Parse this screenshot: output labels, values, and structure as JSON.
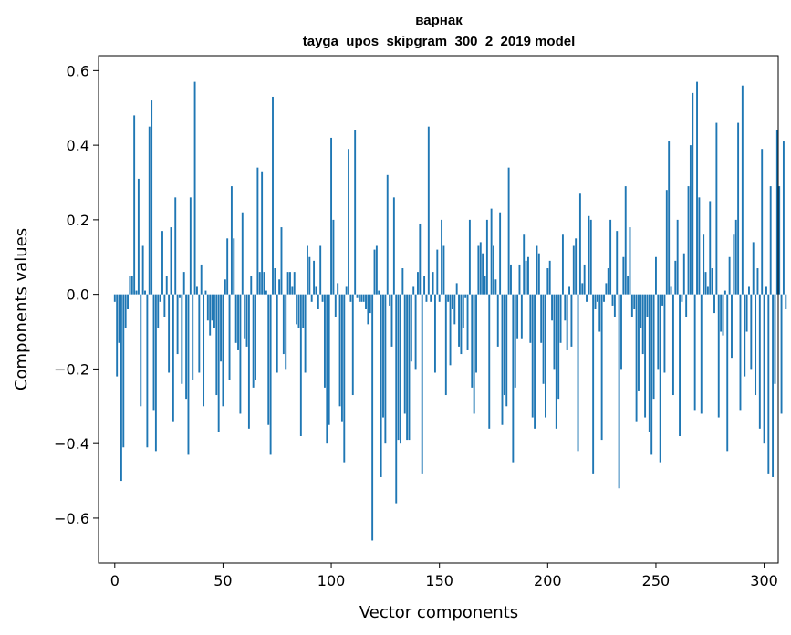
{
  "chart_data": {
    "type": "bar",
    "title": "варнак",
    "subtitle": "tayga_upos_skipgram_300_2_2019 model",
    "xlabel": "Vector components",
    "ylabel": "Components values",
    "xlim": [
      -7.5,
      306.5
    ],
    "ylim": [
      -0.72,
      0.64
    ],
    "xticks": [
      0,
      50,
      100,
      150,
      200,
      250,
      300
    ],
    "yticks": [
      -0.6,
      -0.4,
      -0.2,
      0.0,
      0.2,
      0.4,
      0.6
    ],
    "xtick_labels": [
      "0",
      "50",
      "100",
      "150",
      "200",
      "250",
      "300"
    ],
    "ytick_labels": [
      "−0.6",
      "−0.4",
      "−0.2",
      "0.0",
      "0.2",
      "0.4",
      "0.6"
    ],
    "grid": false,
    "bar_color": "#1f77b4",
    "values": [
      -0.02,
      -0.22,
      -0.13,
      -0.5,
      -0.41,
      -0.09,
      -0.04,
      0.05,
      0.05,
      0.48,
      0.01,
      0.31,
      -0.3,
      0.13,
      0.01,
      -0.41,
      0.45,
      0.52,
      -0.31,
      -0.42,
      -0.09,
      -0.02,
      0.17,
      -0.06,
      0.05,
      -0.21,
      0.18,
      -0.34,
      0.26,
      -0.16,
      -0.01,
      -0.24,
      0.06,
      -0.28,
      -0.43,
      0.26,
      -0.23,
      0.57,
      0.02,
      -0.21,
      0.08,
      -0.3,
      0.01,
      -0.07,
      -0.11,
      -0.07,
      -0.09,
      -0.27,
      -0.37,
      -0.18,
      -0.3,
      0.04,
      0.15,
      -0.23,
      0.29,
      0.15,
      -0.13,
      -0.15,
      -0.32,
      0.22,
      -0.12,
      -0.14,
      -0.36,
      0.05,
      -0.25,
      -0.23,
      0.34,
      0.06,
      0.33,
      0.06,
      0.01,
      -0.35,
      -0.43,
      0.53,
      0.07,
      -0.21,
      0.04,
      0.18,
      -0.16,
      -0.2,
      0.06,
      0.06,
      0.02,
      0.06,
      -0.08,
      -0.09,
      -0.38,
      -0.09,
      -0.21,
      0.13,
      0.1,
      -0.02,
      0.09,
      0.02,
      -0.04,
      0.13,
      -0.02,
      -0.25,
      -0.4,
      -0.35,
      0.42,
      0.2,
      -0.06,
      0.03,
      -0.3,
      -0.34,
      -0.45,
      0.02,
      0.39,
      -0.02,
      -0.27,
      0.44,
      -0.01,
      -0.02,
      -0.02,
      -0.02,
      -0.04,
      -0.08,
      -0.05,
      -0.66,
      0.12,
      0.13,
      0.01,
      -0.49,
      -0.33,
      -0.4,
      0.32,
      -0.03,
      -0.14,
      0.26,
      -0.56,
      -0.39,
      -0.4,
      0.07,
      -0.32,
      -0.39,
      -0.39,
      -0.18,
      0.02,
      -0.2,
      0.06,
      0.19,
      -0.48,
      0.05,
      -0.02,
      0.45,
      -0.02,
      0.06,
      -0.21,
      0.12,
      -0.02,
      0.2,
      0.13,
      -0.27,
      -0.02,
      -0.19,
      -0.04,
      -0.08,
      0.03,
      -0.14,
      -0.16,
      -0.09,
      -0.01,
      -0.15,
      0.2,
      -0.25,
      -0.32,
      -0.21,
      0.13,
      0.14,
      0.11,
      0.05,
      0.2,
      -0.36,
      0.23,
      0.13,
      0.04,
      -0.14,
      0.22,
      -0.35,
      -0.27,
      -0.3,
      0.34,
      0.08,
      -0.45,
      -0.25,
      -0.12,
      0.08,
      -0.12,
      0.16,
      0.09,
      0.1,
      -0.13,
      -0.33,
      -0.36,
      0.13,
      0.11,
      -0.13,
      -0.24,
      -0.33,
      0.07,
      0.09,
      -0.07,
      -0.2,
      -0.36,
      -0.28,
      -0.13,
      0.16,
      -0.07,
      -0.15,
      0.02,
      -0.14,
      0.13,
      0.15,
      -0.42,
      0.27,
      0.03,
      0.08,
      -0.02,
      0.21,
      0.2,
      -0.48,
      -0.04,
      -0.02,
      -0.1,
      -0.39,
      -0.02,
      0.03,
      0.07,
      0.2,
      -0.03,
      -0.06,
      0.17,
      -0.52,
      -0.2,
      0.1,
      0.29,
      0.05,
      0.18,
      -0.06,
      -0.04,
      -0.34,
      -0.26,
      -0.09,
      -0.16,
      -0.33,
      -0.06,
      -0.37,
      -0.43,
      -0.28,
      0.1,
      -0.2,
      -0.45,
      -0.03,
      -0.21,
      0.28,
      0.41,
      0.02,
      -0.27,
      0.09,
      0.2,
      -0.38,
      -0.02,
      0.11,
      -0.06,
      0.29,
      0.4,
      0.54,
      -0.31,
      0.57,
      0.26,
      -0.32,
      0.16,
      0.06,
      0.02,
      0.25,
      0.07,
      -0.05,
      0.46,
      -0.33,
      -0.1,
      -0.11,
      0.01,
      -0.42,
      0.1,
      -0.17,
      0.16,
      0.2,
      0.46,
      -0.31,
      0.56,
      -0.22,
      -0.1,
      0.02,
      -0.2,
      0.14,
      -0.27,
      0.07,
      -0.36,
      0.39,
      -0.4,
      0.02,
      -0.48,
      0.29,
      -0.49,
      -0.24,
      0.44,
      0.29,
      -0.32,
      0.41,
      -0.04
    ]
  }
}
